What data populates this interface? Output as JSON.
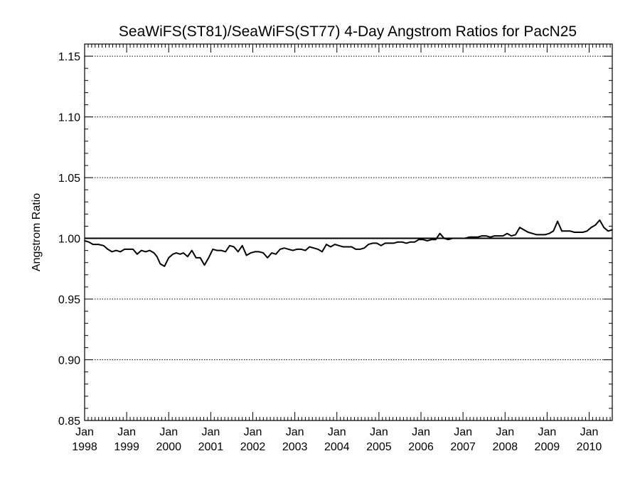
{
  "chart_data": {
    "type": "line",
    "title": "SeaWiFS(ST81)/SeaWiFS(ST77) 4-Day Angstrom Ratios for PacN25",
    "xlabel": "",
    "ylabel": "Angstrom Ratio",
    "xlim": [
      1998.0,
      2010.55
    ],
    "ylim": [
      0.85,
      1.16
    ],
    "grid": "horizontal-dotted",
    "reference_line": 1.0,
    "y_ticks": [
      {
        "value": 0.85,
        "label": "0.85"
      },
      {
        "value": 0.9,
        "label": "0.90"
      },
      {
        "value": 0.95,
        "label": "0.95"
      },
      {
        "value": 1.0,
        "label": "1.00"
      },
      {
        "value": 1.05,
        "label": "1.05"
      },
      {
        "value": 1.1,
        "label": "1.10"
      },
      {
        "value": 1.15,
        "label": "1.15"
      }
    ],
    "x_ticks": [
      {
        "value": 1998,
        "month": "Jan",
        "year": "1998"
      },
      {
        "value": 1999,
        "month": "Jan",
        "year": "1999"
      },
      {
        "value": 2000,
        "month": "Jan",
        "year": "2000"
      },
      {
        "value": 2001,
        "month": "Jan",
        "year": "2001"
      },
      {
        "value": 2002,
        "month": "Jan",
        "year": "2002"
      },
      {
        "value": 2003,
        "month": "Jan",
        "year": "2003"
      },
      {
        "value": 2004,
        "month": "Jan",
        "year": "2004"
      },
      {
        "value": 2005,
        "month": "Jan",
        "year": "2005"
      },
      {
        "value": 2006,
        "month": "Jan",
        "year": "2006"
      },
      {
        "value": 2007,
        "month": "Jan",
        "year": "2007"
      },
      {
        "value": 2008,
        "month": "Jan",
        "year": "2008"
      },
      {
        "value": 2009,
        "month": "Jan",
        "year": "2009"
      },
      {
        "value": 2010,
        "month": "Jan",
        "year": "2010"
      }
    ],
    "series": [
      {
        "name": "",
        "x": [
          1998.0,
          1998.1,
          1998.2,
          1998.33,
          1998.45,
          1998.55,
          1998.65,
          1998.75,
          1998.85,
          1998.95,
          1999.05,
          1999.15,
          1999.25,
          1999.35,
          1999.45,
          1999.55,
          1999.65,
          1999.72,
          1999.8,
          1999.9,
          2000.0,
          2000.1,
          2000.18,
          2000.27,
          2000.35,
          2000.45,
          2000.55,
          2000.65,
          2000.75,
          2000.85,
          2000.95,
          2001.05,
          2001.15,
          2001.25,
          2001.35,
          2001.45,
          2001.55,
          2001.65,
          2001.75,
          2001.85,
          2001.95,
          2002.05,
          2002.15,
          2002.25,
          2002.35,
          2002.45,
          2002.55,
          2002.65,
          2002.75,
          2002.85,
          2002.95,
          2003.05,
          2003.15,
          2003.25,
          2003.35,
          2003.45,
          2003.55,
          2003.65,
          2003.75,
          2003.85,
          2003.95,
          2004.05,
          2004.15,
          2004.25,
          2004.35,
          2004.45,
          2004.55,
          2004.65,
          2004.75,
          2004.85,
          2004.95,
          2005.05,
          2005.15,
          2005.25,
          2005.35,
          2005.45,
          2005.55,
          2005.65,
          2005.75,
          2005.85,
          2005.95,
          2006.05,
          2006.15,
          2006.25,
          2006.35,
          2006.45,
          2006.55,
          2006.65,
          2006.75,
          2006.85,
          2006.95,
          2007.05,
          2007.15,
          2007.25,
          2007.35,
          2007.45,
          2007.55,
          2007.65,
          2007.75,
          2007.85,
          2007.95,
          2008.05,
          2008.15,
          2008.25,
          2008.35,
          2008.45,
          2008.55,
          2008.65,
          2008.75,
          2008.85,
          2008.95,
          2009.05,
          2009.15,
          2009.25,
          2009.35,
          2009.45,
          2009.55,
          2009.65,
          2009.75,
          2009.85,
          2009.95,
          2010.05,
          2010.15,
          2010.25,
          2010.35,
          2010.45,
          2010.55
        ],
        "values": [
          0.998,
          0.997,
          0.995,
          0.995,
          0.994,
          0.991,
          0.989,
          0.99,
          0.989,
          0.991,
          0.991,
          0.991,
          0.987,
          0.99,
          0.989,
          0.99,
          0.988,
          0.985,
          0.979,
          0.977,
          0.984,
          0.987,
          0.988,
          0.987,
          0.988,
          0.985,
          0.99,
          0.984,
          0.984,
          0.978,
          0.984,
          0.991,
          0.99,
          0.99,
          0.989,
          0.994,
          0.993,
          0.989,
          0.994,
          0.986,
          0.988,
          0.989,
          0.989,
          0.988,
          0.984,
          0.988,
          0.987,
          0.991,
          0.992,
          0.991,
          0.99,
          0.991,
          0.991,
          0.99,
          0.993,
          0.992,
          0.991,
          0.989,
          0.995,
          0.993,
          0.995,
          0.994,
          0.993,
          0.993,
          0.993,
          0.991,
          0.991,
          0.992,
          0.995,
          0.996,
          0.996,
          0.994,
          0.996,
          0.996,
          0.996,
          0.997,
          0.997,
          0.996,
          0.997,
          0.997,
          0.999,
          0.999,
          0.998,
          0.999,
          0.999,
          1.004,
          1.0,
          0.999,
          1.0,
          1.0,
          1.0,
          1.0,
          1.001,
          1.001,
          1.001,
          1.002,
          1.002,
          1.001,
          1.002,
          1.002,
          1.002,
          1.004,
          1.002,
          1.003,
          1.009,
          1.007,
          1.005,
          1.004,
          1.003,
          1.003,
          1.003,
          1.004,
          1.006,
          1.014,
          1.006,
          1.006,
          1.006,
          1.005,
          1.005,
          1.005,
          1.006,
          1.009,
          1.011,
          1.015,
          1.009,
          1.006,
          1.007
        ]
      }
    ]
  }
}
